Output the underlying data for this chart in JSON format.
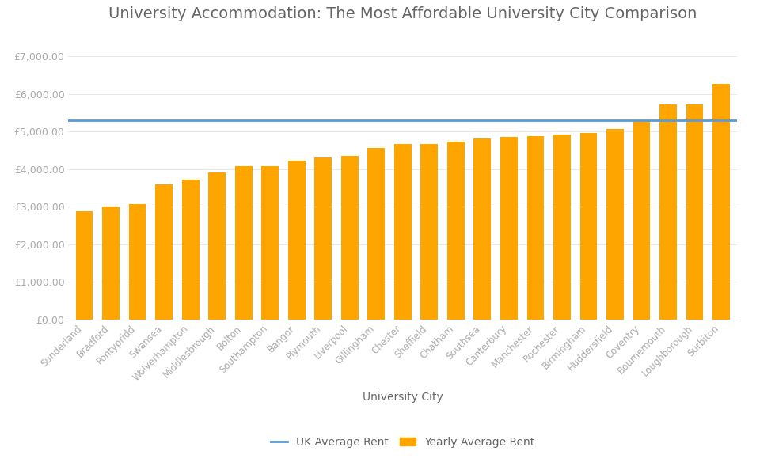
{
  "title": "University Accommodation: The Most Affordable University City Comparison",
  "xlabel": "University City",
  "ylabel": "",
  "categories": [
    "Sunderland",
    "Bradford",
    "Pontypridd",
    "Swansea",
    "Wolverhampton",
    "Middlesbrough",
    "Bolton",
    "Southampton",
    "Bangor",
    "Plymouth",
    "Liverpool",
    "Gillingham",
    "Chester",
    "Sheffield",
    "Chatham",
    "Southsea",
    "Canterbury",
    "Manchester",
    "Rochester",
    "Birmingham",
    "Huddersfield",
    "Coventry",
    "Bournemouth",
    "Loughborough",
    "Surbiton"
  ],
  "values": [
    2890,
    3010,
    3080,
    3600,
    3720,
    3920,
    4090,
    4080,
    4220,
    4320,
    4350,
    4570,
    4660,
    4680,
    4740,
    4820,
    4860,
    4890,
    4930,
    4960,
    5080,
    5300,
    5720,
    5720,
    6260
  ],
  "bar_color": "#FFA500",
  "line_value": 5300,
  "line_color": "#5B9BD5",
  "line_label": "UK Average Rent",
  "bar_label": "Yearly Average Rent",
  "background_color": "#FFFFFF",
  "title_fontsize": 14,
  "tick_label_color": "#AAAAAA",
  "text_color": "#666666",
  "ylim": [
    0,
    7500
  ],
  "yticks": [
    0,
    1000,
    2000,
    3000,
    4000,
    5000,
    6000,
    7000
  ]
}
